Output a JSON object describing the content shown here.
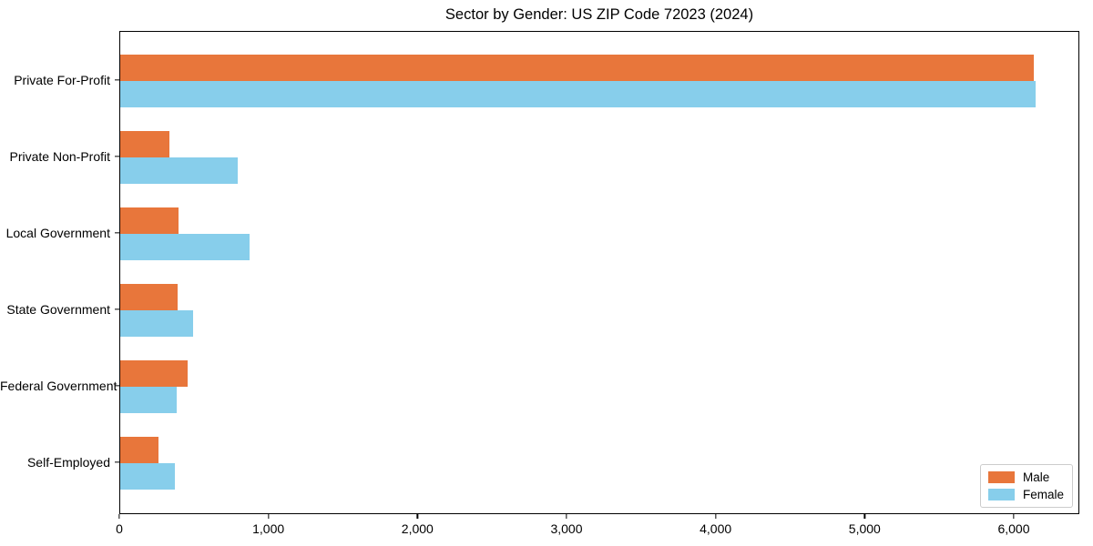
{
  "chart_data": {
    "type": "bar",
    "orientation": "horizontal",
    "title": "Sector by Gender: US ZIP Code 72023 (2024)",
    "categories": [
      "Private For-Profit",
      "Private Non-Profit",
      "Local Government",
      "State Government",
      "Federal Government",
      "Self-Employed"
    ],
    "series": [
      {
        "name": "Male",
        "color": "#e8763b",
        "values": [
          6130,
          330,
          390,
          385,
          450,
          255
        ]
      },
      {
        "name": "Female",
        "color": "#87ceeb",
        "values": [
          6140,
          790,
          870,
          490,
          380,
          365
        ]
      }
    ],
    "xlabel": "",
    "ylabel": "",
    "xlim": [
      0,
      6440
    ],
    "xticks": [
      0,
      1000,
      2000,
      3000,
      4000,
      5000,
      6000
    ],
    "xtick_labels": [
      "0",
      "1,000",
      "2,000",
      "3,000",
      "4,000",
      "5,000",
      "6,000"
    ],
    "grid": false,
    "legend": {
      "position": "lower right",
      "entries": [
        "Male",
        "Female"
      ]
    }
  }
}
